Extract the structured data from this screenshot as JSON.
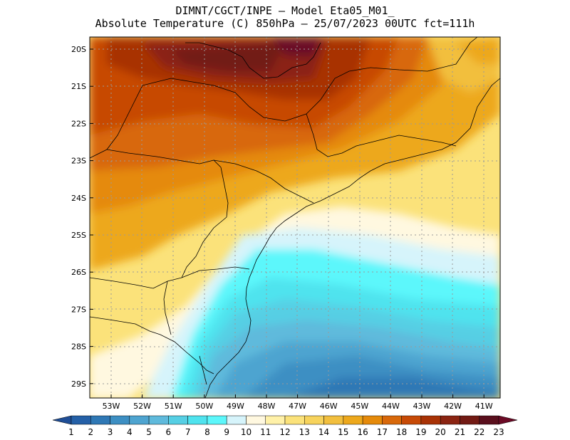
{
  "title": {
    "line1": "DIMNT/CGCT/INPE —  Model Eta05_M01_",
    "line2": "Absolute Temperature (C) 850hPa —  25/07/2023 00UTC fct=111h"
  },
  "lat_labels": [
    "20S",
    "21S",
    "22S",
    "23S",
    "24S",
    "25S",
    "26S",
    "27S",
    "28S",
    "29S"
  ],
  "lon_labels": [
    "53W",
    "52W",
    "51W",
    "50W",
    "49W",
    "48W",
    "47W",
    "46W",
    "45W",
    "44W",
    "43W",
    "42W",
    "41W"
  ],
  "colorbar": {
    "labels": [
      "1",
      "2",
      "3",
      "4",
      "5",
      "6",
      "7",
      "8",
      "9",
      "10",
      "11",
      "12",
      "13",
      "14",
      "15",
      "16",
      "17",
      "18",
      "19",
      "20",
      "21",
      "22",
      "23"
    ],
    "colors": [
      "#1f4e96",
      "#2460a7",
      "#2f78b5",
      "#3d8fc3",
      "#4ea4d0",
      "#5fbadc",
      "#56cfe4",
      "#4fe3ee",
      "#5cf7fb",
      "#d6f4fb",
      "#fff8e0",
      "#fff1a8",
      "#fbe27a",
      "#f7d35c",
      "#f2bf3e",
      "#eda81c",
      "#e58a0a",
      "#d8680a",
      "#c74a06",
      "#a83205",
      "#8b2412",
      "#721a14",
      "#5a0f1d",
      "#6b0a25"
    ]
  },
  "colors": {
    "ocean_cold": "#3d8fc3",
    "cold_tongue": "#5fbadc",
    "warm_inland": "#c74a06",
    "hot_core": "#721a14"
  }
}
